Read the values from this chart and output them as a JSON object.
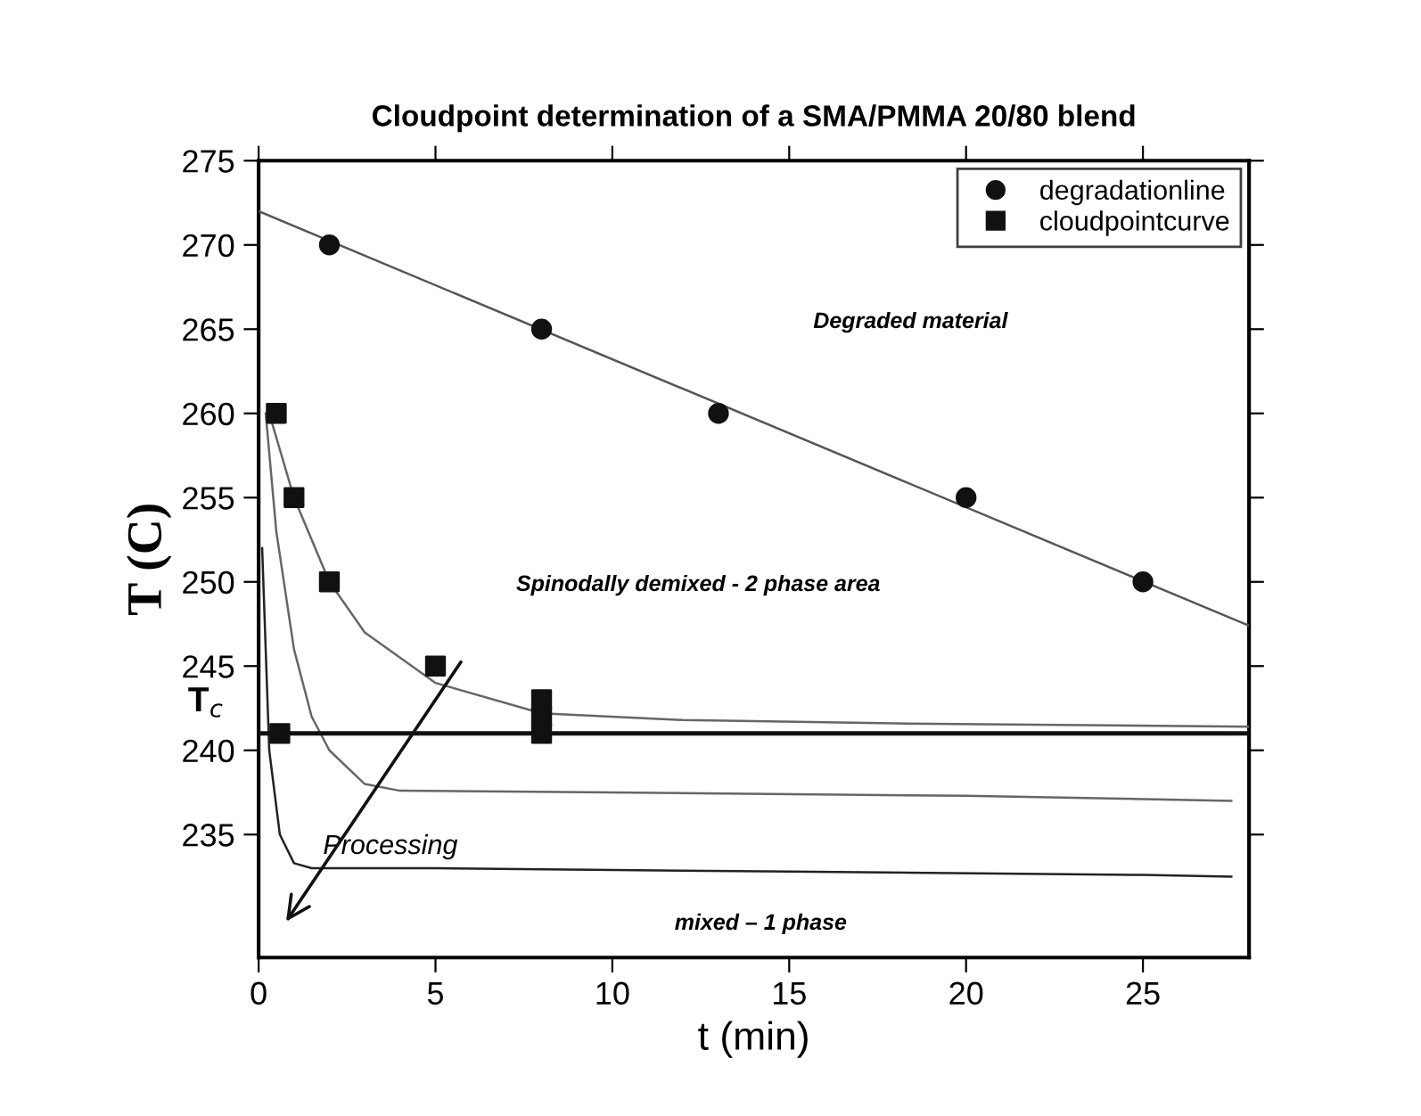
{
  "chart_data": {
    "type": "scatter",
    "title": "Cloudpoint determination of a SMA/PMMA 20/80 blend",
    "xlabel": "t (min)",
    "ylabel": "T (C)",
    "xlim": [
      0,
      28
    ],
    "ylim": [
      227.7,
      275
    ],
    "xticks": [
      0,
      5,
      10,
      15,
      20,
      25
    ],
    "yticks": [
      235,
      240,
      245,
      250,
      255,
      260,
      265,
      270,
      275
    ],
    "grid": false,
    "legend": "top right",
    "series": [
      {
        "name": "degradationline",
        "marker": "circle",
        "color": "#111111",
        "x": [
          2,
          8,
          13,
          20,
          25
        ],
        "values": [
          270,
          265,
          260,
          255,
          250
        ]
      },
      {
        "name": "cloudpointcurve",
        "marker": "square",
        "color": "#111111",
        "x": [
          0.5,
          1,
          2,
          5,
          8,
          8,
          8,
          0.6
        ],
        "values": [
          260,
          255,
          250,
          245,
          243,
          242,
          241,
          241
        ]
      },
      {
        "type": "line",
        "marker": "none",
        "color": "#555555",
        "x": [
          0,
          28
        ],
        "values": [
          272,
          247.4
        ]
      },
      {
        "type": "line",
        "marker": "none",
        "color": "#666666",
        "x": [
          0.3,
          1,
          2,
          3,
          5,
          8,
          12,
          18,
          28
        ],
        "values": [
          260,
          255,
          250,
          247,
          244,
          242.2,
          241.8,
          241.6,
          241.4
        ]
      },
      {
        "type": "line",
        "marker": "none",
        "color": "#666666",
        "x": [
          0.2,
          0.5,
          1,
          1.5,
          2,
          3,
          4,
          10,
          20,
          27.5
        ],
        "values": [
          260,
          253,
          246,
          242,
          240,
          238,
          237.6,
          237.5,
          237.3,
          237
        ]
      },
      {
        "type": "line",
        "marker": "none",
        "color": "#222222",
        "x": [
          0.1,
          0.3,
          0.6,
          1,
          1.5,
          5,
          15,
          25,
          27.5
        ],
        "values": [
          252,
          240,
          235,
          233.3,
          233,
          233,
          232.8,
          232.6,
          232.5
        ]
      }
    ],
    "ref_lines": [
      {
        "axis": "y",
        "value": 241,
        "label": "T$_{c}$",
        "color": "#111111"
      }
    ],
    "annotations": [
      "Degraded material",
      "Spinodally demixed - 2 phase area",
      "mixed – 1 phase",
      "Processing"
    ]
  }
}
